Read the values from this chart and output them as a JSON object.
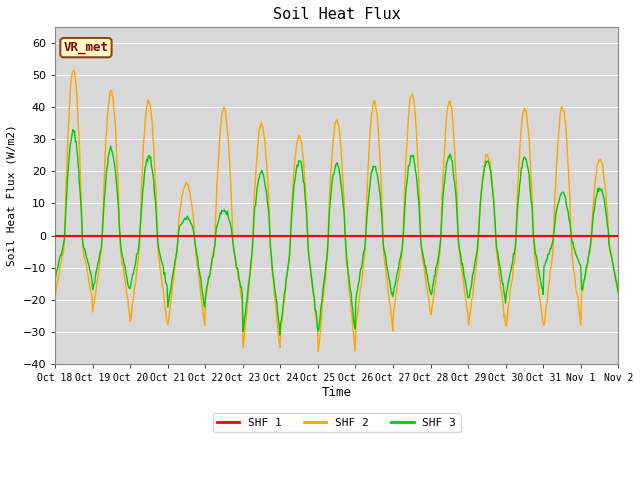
{
  "title": "Soil Heat Flux",
  "xlabel": "Time",
  "ylabel": "Soil Heat Flux (W/m2)",
  "ylim": [
    -40,
    65
  ],
  "yticks": [
    -40,
    -30,
    -20,
    -10,
    0,
    10,
    20,
    30,
    40,
    50,
    60
  ],
  "background_color": "#ffffff",
  "plot_bg_color": "#d8d8d8",
  "line_colors": {
    "SHF 1": "#ff0000",
    "SHF 2": "#ffa500",
    "SHF 3": "#00cc00"
  },
  "line_widths": {
    "SHF 1": 1.5,
    "SHF 2": 1.0,
    "SHF 3": 1.0
  },
  "xtick_labels": [
    "Oct 18",
    "Oct 19",
    "Oct 20",
    "Oct 21",
    "Oct 22",
    "Oct 23",
    "Oct 24",
    "Oct 25",
    "Oct 26",
    "Oct 27",
    "Oct 28",
    "Oct 29",
    "Oct 30",
    "Oct 31",
    "Nov 1",
    "Nov 2"
  ],
  "annotation_text": "VR_met",
  "n_days": 15,
  "n_per_day": 48,
  "shf2_peaks": [
    52,
    45,
    42,
    16,
    40,
    35,
    31,
    36,
    42,
    44,
    42,
    25,
    40,
    40,
    24
  ],
  "shf2_troughs": [
    -19,
    -24,
    -27,
    -28,
    -20,
    -35,
    -30,
    -36,
    -29,
    -24,
    -25,
    -28,
    -28,
    -28,
    -18
  ],
  "shf3_peaks": [
    36,
    30,
    28,
    6,
    9,
    22,
    26,
    25,
    24,
    28,
    28,
    26,
    27,
    15,
    16
  ],
  "shf3_troughs": [
    -13,
    -17,
    -16,
    -22,
    -19,
    -30,
    -28,
    -30,
    -20,
    -18,
    -19,
    -20,
    -18,
    -10,
    -18
  ]
}
